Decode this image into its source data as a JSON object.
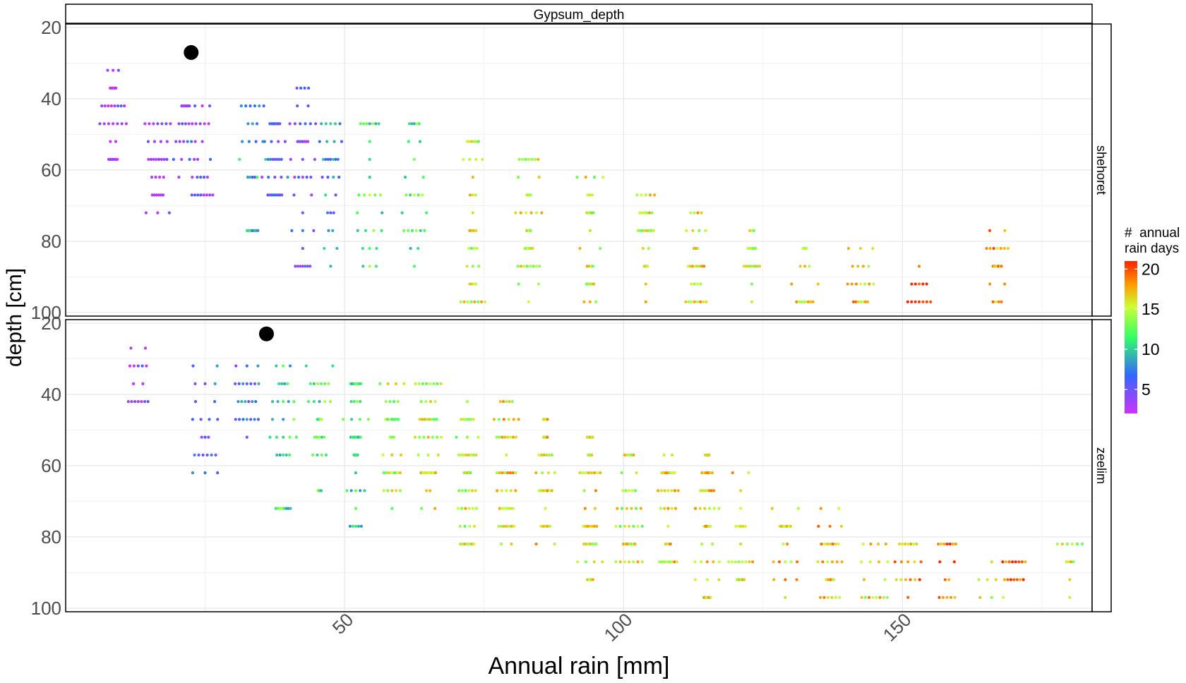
{
  "chart_data": {
    "type": "scatter",
    "title": "Gypsum_depth",
    "xlabel": "Annual rain [mm]",
    "ylabel": "depth [cm]",
    "xlim": [
      0,
      184
    ],
    "ylim": [
      19,
      101
    ],
    "y_reversed": true,
    "x_ticks": [
      50,
      100,
      150
    ],
    "y_ticks": [
      20,
      40,
      60,
      80,
      100
    ],
    "grid": true,
    "legend": {
      "title_line1": "#  annual",
      "title_line2": "rain days",
      "position": "right",
      "ticks": [
        5,
        10,
        15,
        20
      ],
      "range": [
        2,
        21
      ],
      "colors": [
        "#cc33ff",
        "#3366ff",
        "#33ff66",
        "#ccff33",
        "#ff9900",
        "#ff2200"
      ]
    },
    "panels": [
      {
        "strip": "shehoret",
        "columns": [
          {
            "x": 8.5,
            "ys": [
              32,
              37,
              42,
              47,
              52,
              57
            ],
            "rain_days": 3
          },
          {
            "x": 16.5,
            "ys": [
              47,
              52,
              57,
              62,
              67,
              72
            ],
            "rain_days": 3
          },
          {
            "x": 21.5,
            "ys": [
              42,
              47,
              52,
              57,
              62
            ],
            "rain_days": 5
          },
          {
            "x": 24.5,
            "ys": [
              42,
              47,
              52,
              57,
              62,
              67
            ],
            "rain_days": 4
          },
          {
            "x": 33.5,
            "ys": [
              42,
              47,
              52,
              57,
              62,
              77
            ],
            "rain_days": 9
          },
          {
            "x": 37.5,
            "ys": [
              47,
              52,
              57,
              62,
              67
            ],
            "rain_days": 6
          },
          {
            "x": 42.5,
            "ys": [
              37,
              42,
              47,
              52,
              57,
              62,
              67,
              72,
              77,
              82,
              87
            ],
            "rain_days": 5
          },
          {
            "x": 47.5,
            "ys": [
              47,
              52,
              57,
              62,
              67,
              72,
              77,
              82,
              87
            ],
            "rain_days": 8
          },
          {
            "x": 54.5,
            "ys": [
              47,
              52,
              57,
              62,
              67,
              72,
              77,
              82,
              87
            ],
            "rain_days": 12
          },
          {
            "x": 62.5,
            "ys": [
              47,
              52,
              57,
              62,
              67,
              72,
              77,
              82,
              87
            ],
            "rain_days": 12
          },
          {
            "x": 73.0,
            "ys": [
              52,
              57,
              62,
              67,
              72,
              77,
              82,
              87,
              92,
              97
            ],
            "rain_days": 15
          },
          {
            "x": 83.0,
            "ys": [
              57,
              62,
              67,
              72,
              77,
              82,
              87,
              92,
              97
            ],
            "rain_days": 15
          },
          {
            "x": 94.0,
            "ys": [
              62,
              67,
              72,
              77,
              82,
              87,
              92,
              97
            ],
            "rain_days": 15
          },
          {
            "x": 104.0,
            "ys": [
              67,
              72,
              77,
              82,
              87,
              92,
              97
            ],
            "rain_days": 15
          },
          {
            "x": 113.0,
            "ys": [
              72,
              77,
              82,
              87,
              92,
              97
            ],
            "rain_days": 16
          },
          {
            "x": 123.0,
            "ys": [
              77,
              82,
              87,
              92,
              97
            ],
            "rain_days": 14
          },
          {
            "x": 132.5,
            "ys": [
              82,
              87,
              92,
              97
            ],
            "rain_days": 16
          },
          {
            "x": 142.5,
            "ys": [
              82,
              87,
              92,
              97
            ],
            "rain_days": 17
          },
          {
            "x": 153.0,
            "ys": [
              87,
              92,
              97
            ],
            "rain_days": 19
          },
          {
            "x": 167.0,
            "ys": [
              77,
              82,
              87,
              92,
              97
            ],
            "rain_days": 18
          }
        ],
        "highlight": {
          "x": 22.5,
          "y": 27
        }
      },
      {
        "strip": "zeelim",
        "columns": [
          {
            "x": 13.0,
            "ys": [
              27,
              32,
              37,
              42
            ],
            "rain_days": 3
          },
          {
            "x": 25.0,
            "ys": [
              32,
              37,
              42,
              47,
              52,
              57,
              62
            ],
            "rain_days": 6
          },
          {
            "x": 32.5,
            "ys": [
              32,
              37,
              42,
              47,
              52
            ],
            "rain_days": 7
          },
          {
            "x": 39.0,
            "ys": [
              32,
              37,
              42,
              47,
              52,
              57,
              72
            ],
            "rain_days": 11
          },
          {
            "x": 45.5,
            "ys": [
              32,
              37,
              42,
              47,
              52,
              57,
              67
            ],
            "rain_days": 12
          },
          {
            "x": 52.0,
            "ys": [
              37,
              42,
              47,
              52,
              57,
              62,
              67,
              72,
              77
            ],
            "rain_days": 11
          },
          {
            "x": 58.5,
            "ys": [
              37,
              42,
              47,
              52,
              57,
              62,
              67,
              72
            ],
            "rain_days": 14
          },
          {
            "x": 65.0,
            "ys": [
              37,
              42,
              47,
              52,
              57,
              62,
              67,
              72
            ],
            "rain_days": 15
          },
          {
            "x": 72.0,
            "ys": [
              42,
              47,
              52,
              57,
              62,
              67,
              72,
              77,
              82
            ],
            "rain_days": 15
          },
          {
            "x": 79.0,
            "ys": [
              42,
              47,
              52,
              57,
              62,
              67,
              72,
              77,
              82
            ],
            "rain_days": 16
          },
          {
            "x": 86.0,
            "ys": [
              47,
              52,
              57,
              62,
              67,
              72,
              77,
              82
            ],
            "rain_days": 16
          },
          {
            "x": 94.0,
            "ys": [
              52,
              57,
              62,
              67,
              72,
              77,
              82,
              87,
              92
            ],
            "rain_days": 16
          },
          {
            "x": 101.0,
            "ys": [
              57,
              62,
              67,
              72,
              77,
              82,
              87
            ],
            "rain_days": 15
          },
          {
            "x": 108.0,
            "ys": [
              57,
              62,
              67,
              72,
              77,
              82,
              87
            ],
            "rain_days": 16
          },
          {
            "x": 115.0,
            "ys": [
              57,
              62,
              67,
              72,
              77,
              82,
              87,
              92,
              97
            ],
            "rain_days": 16
          },
          {
            "x": 121.0,
            "ys": [
              62,
              67,
              72,
              77,
              82,
              87,
              92
            ],
            "rain_days": 16
          },
          {
            "x": 129.0,
            "ys": [
              72,
              77,
              82,
              87,
              92,
              97
            ],
            "rain_days": 17
          },
          {
            "x": 137.0,
            "ys": [
              72,
              77,
              82,
              87,
              92,
              97
            ],
            "rain_days": 17
          },
          {
            "x": 145.0,
            "ys": [
              82,
              87,
              92,
              97
            ],
            "rain_days": 16
          },
          {
            "x": 151.0,
            "ys": [
              82,
              87,
              92,
              97
            ],
            "rain_days": 18
          },
          {
            "x": 158.0,
            "ys": [
              82,
              87,
              92,
              97
            ],
            "rain_days": 19
          },
          {
            "x": 166.0,
            "ys": [
              87,
              92,
              97
            ],
            "rain_days": 16
          },
          {
            "x": 170.0,
            "ys": [
              87,
              92
            ],
            "rain_days": 20
          },
          {
            "x": 180.0,
            "ys": [
              82,
              87,
              92,
              97
            ],
            "rain_days": 15
          }
        ],
        "highlight": {
          "x": 36.0,
          "y": 23
        }
      }
    ]
  }
}
